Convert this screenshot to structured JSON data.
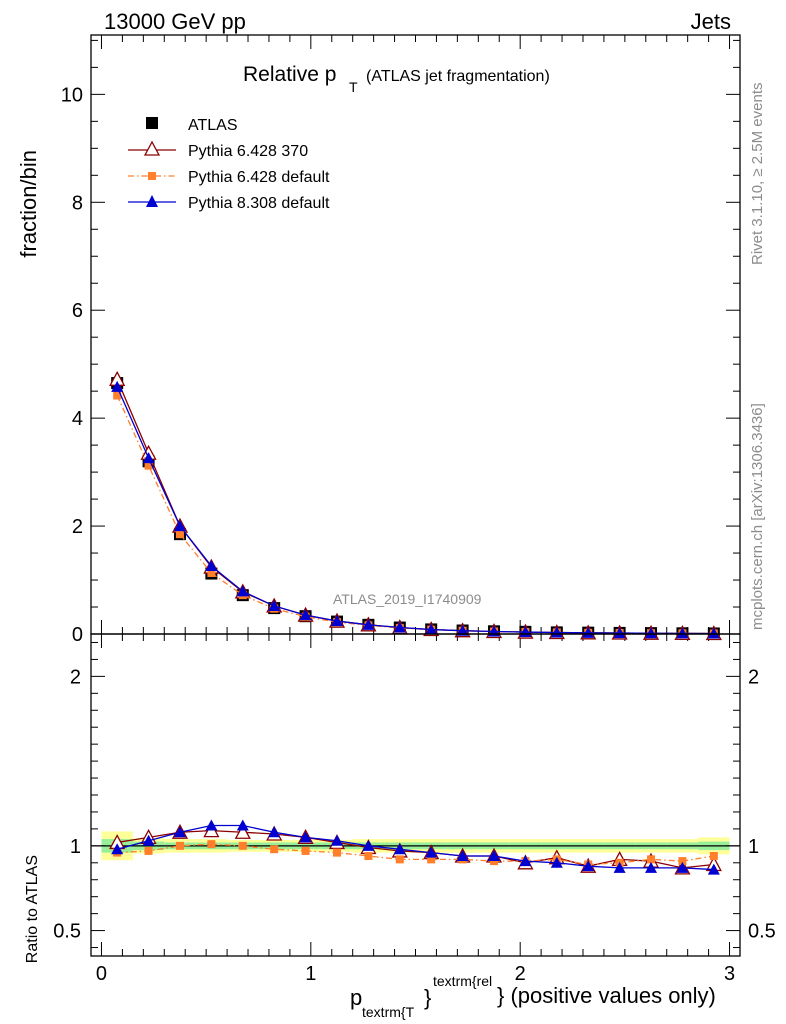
{
  "header": {
    "left": "13000 GeV pp",
    "right": "Jets"
  },
  "title": {
    "main": "Relative p",
    "sub": "T",
    "note": "(ATLAS jet fragmentation)"
  },
  "side_labels": {
    "rivet": "Rivet 3.1.10, ≥ 2.5M events",
    "mcplots": "mcplots.cern.ch [arXiv:1306.3436]"
  },
  "watermark": "ATLAS_2019_I1740909",
  "xaxis": {
    "label_p": "p",
    "label_sub": "textrm{T",
    "label_sup": "textrm{rel",
    "label_tail": "} (positive values only)",
    "brace": "}",
    "ticks": [
      "0",
      "1",
      "2",
      "3"
    ]
  },
  "chart_data": [
    {
      "type": "line",
      "panel": "main",
      "ylabel": "fraction/bin",
      "xlim": [
        -0.05,
        3.05
      ],
      "ylim": [
        0,
        11.1
      ],
      "yticks": [
        "0",
        "2",
        "4",
        "6",
        "8",
        "10"
      ],
      "x": [
        0.075,
        0.225,
        0.375,
        0.525,
        0.675,
        0.825,
        0.975,
        1.125,
        1.275,
        1.425,
        1.575,
        1.725,
        1.875,
        2.025,
        2.175,
        2.325,
        2.475,
        2.625,
        2.775,
        2.925
      ],
      "series": [
        {
          "name": "ATLAS",
          "color": "#000000",
          "marker": "square",
          "values": [
            4.65,
            3.2,
            1.85,
            1.12,
            0.72,
            0.48,
            0.33,
            0.23,
            0.17,
            0.12,
            0.085,
            0.065,
            0.05,
            0.04,
            0.03,
            0.025,
            0.02,
            0.016,
            0.013,
            0.01
          ]
        },
        {
          "name": "Pythia 6.428 370",
          "color": "#8b0000",
          "marker": "triangle-open",
          "values": [
            4.72,
            3.35,
            2.0,
            1.24,
            0.78,
            0.52,
            0.35,
            0.24,
            0.17,
            0.12,
            0.083,
            0.061,
            0.047,
            0.036,
            0.028,
            0.022,
            0.018,
            0.015,
            0.011,
            0.009
          ]
        },
        {
          "name": "Pythia 6.428 default",
          "color": "#ff7f2a",
          "marker": "square-small",
          "dash": true,
          "values": [
            4.42,
            3.12,
            1.85,
            1.13,
            0.72,
            0.47,
            0.32,
            0.22,
            0.16,
            0.11,
            0.08,
            0.06,
            0.046,
            0.036,
            0.028,
            0.022,
            0.018,
            0.015,
            0.012,
            0.0095
          ]
        },
        {
          "name": "Pythia 8.308 default",
          "color": "#0000d0",
          "marker": "triangle",
          "values": [
            4.58,
            3.26,
            2.0,
            1.26,
            0.79,
            0.52,
            0.35,
            0.24,
            0.17,
            0.12,
            0.082,
            0.061,
            0.047,
            0.036,
            0.027,
            0.022,
            0.017,
            0.014,
            0.011,
            0.0087
          ]
        }
      ]
    },
    {
      "type": "line",
      "panel": "ratio",
      "ylabel": "Ratio to ATLAS",
      "xlim": [
        -0.05,
        3.05
      ],
      "ylim": [
        0.35,
        2.25
      ],
      "yticks": [
        "0.5",
        "1",
        "2"
      ],
      "x": [
        0.075,
        0.225,
        0.375,
        0.525,
        0.675,
        0.825,
        0.975,
        1.125,
        1.275,
        1.425,
        1.575,
        1.725,
        1.875,
        2.025,
        2.175,
        2.325,
        2.475,
        2.625,
        2.775,
        2.925
      ],
      "band_yellow": [
        0.085,
        0.045,
        0.04,
        0.04,
        0.035,
        0.035,
        0.035,
        0.035,
        0.04,
        0.04,
        0.04,
        0.04,
        0.04,
        0.04,
        0.04,
        0.04,
        0.04,
        0.04,
        0.04,
        0.05
      ],
      "band_green": [
        0.04,
        0.025,
        0.02,
        0.02,
        0.02,
        0.02,
        0.02,
        0.02,
        0.02,
        0.02,
        0.02,
        0.02,
        0.02,
        0.02,
        0.02,
        0.02,
        0.02,
        0.02,
        0.02,
        0.025
      ],
      "series": [
        {
          "name": "Pythia 6.428 370",
          "color": "#8b0000",
          "marker": "triangle-open",
          "values": [
            1.02,
            1.05,
            1.08,
            1.09,
            1.08,
            1.07,
            1.05,
            1.02,
            0.99,
            0.97,
            0.96,
            0.94,
            0.94,
            0.9,
            0.93,
            0.88,
            0.92,
            0.91,
            0.87,
            0.89
          ]
        },
        {
          "name": "Pythia 6.428 default",
          "color": "#ff7f2a",
          "marker": "square-small",
          "dash": true,
          "values": [
            0.96,
            0.97,
            1.0,
            1.01,
            1.0,
            0.98,
            0.97,
            0.96,
            0.94,
            0.92,
            0.92,
            0.92,
            0.91,
            0.91,
            0.92,
            0.89,
            0.9,
            0.92,
            0.91,
            0.94
          ]
        },
        {
          "name": "Pythia 8.308 default",
          "color": "#0000d0",
          "marker": "triangle",
          "values": [
            0.98,
            1.03,
            1.08,
            1.12,
            1.12,
            1.08,
            1.05,
            1.03,
            1.0,
            0.98,
            0.96,
            0.94,
            0.94,
            0.91,
            0.9,
            0.88,
            0.87,
            0.87,
            0.87,
            0.86
          ]
        }
      ]
    }
  ]
}
